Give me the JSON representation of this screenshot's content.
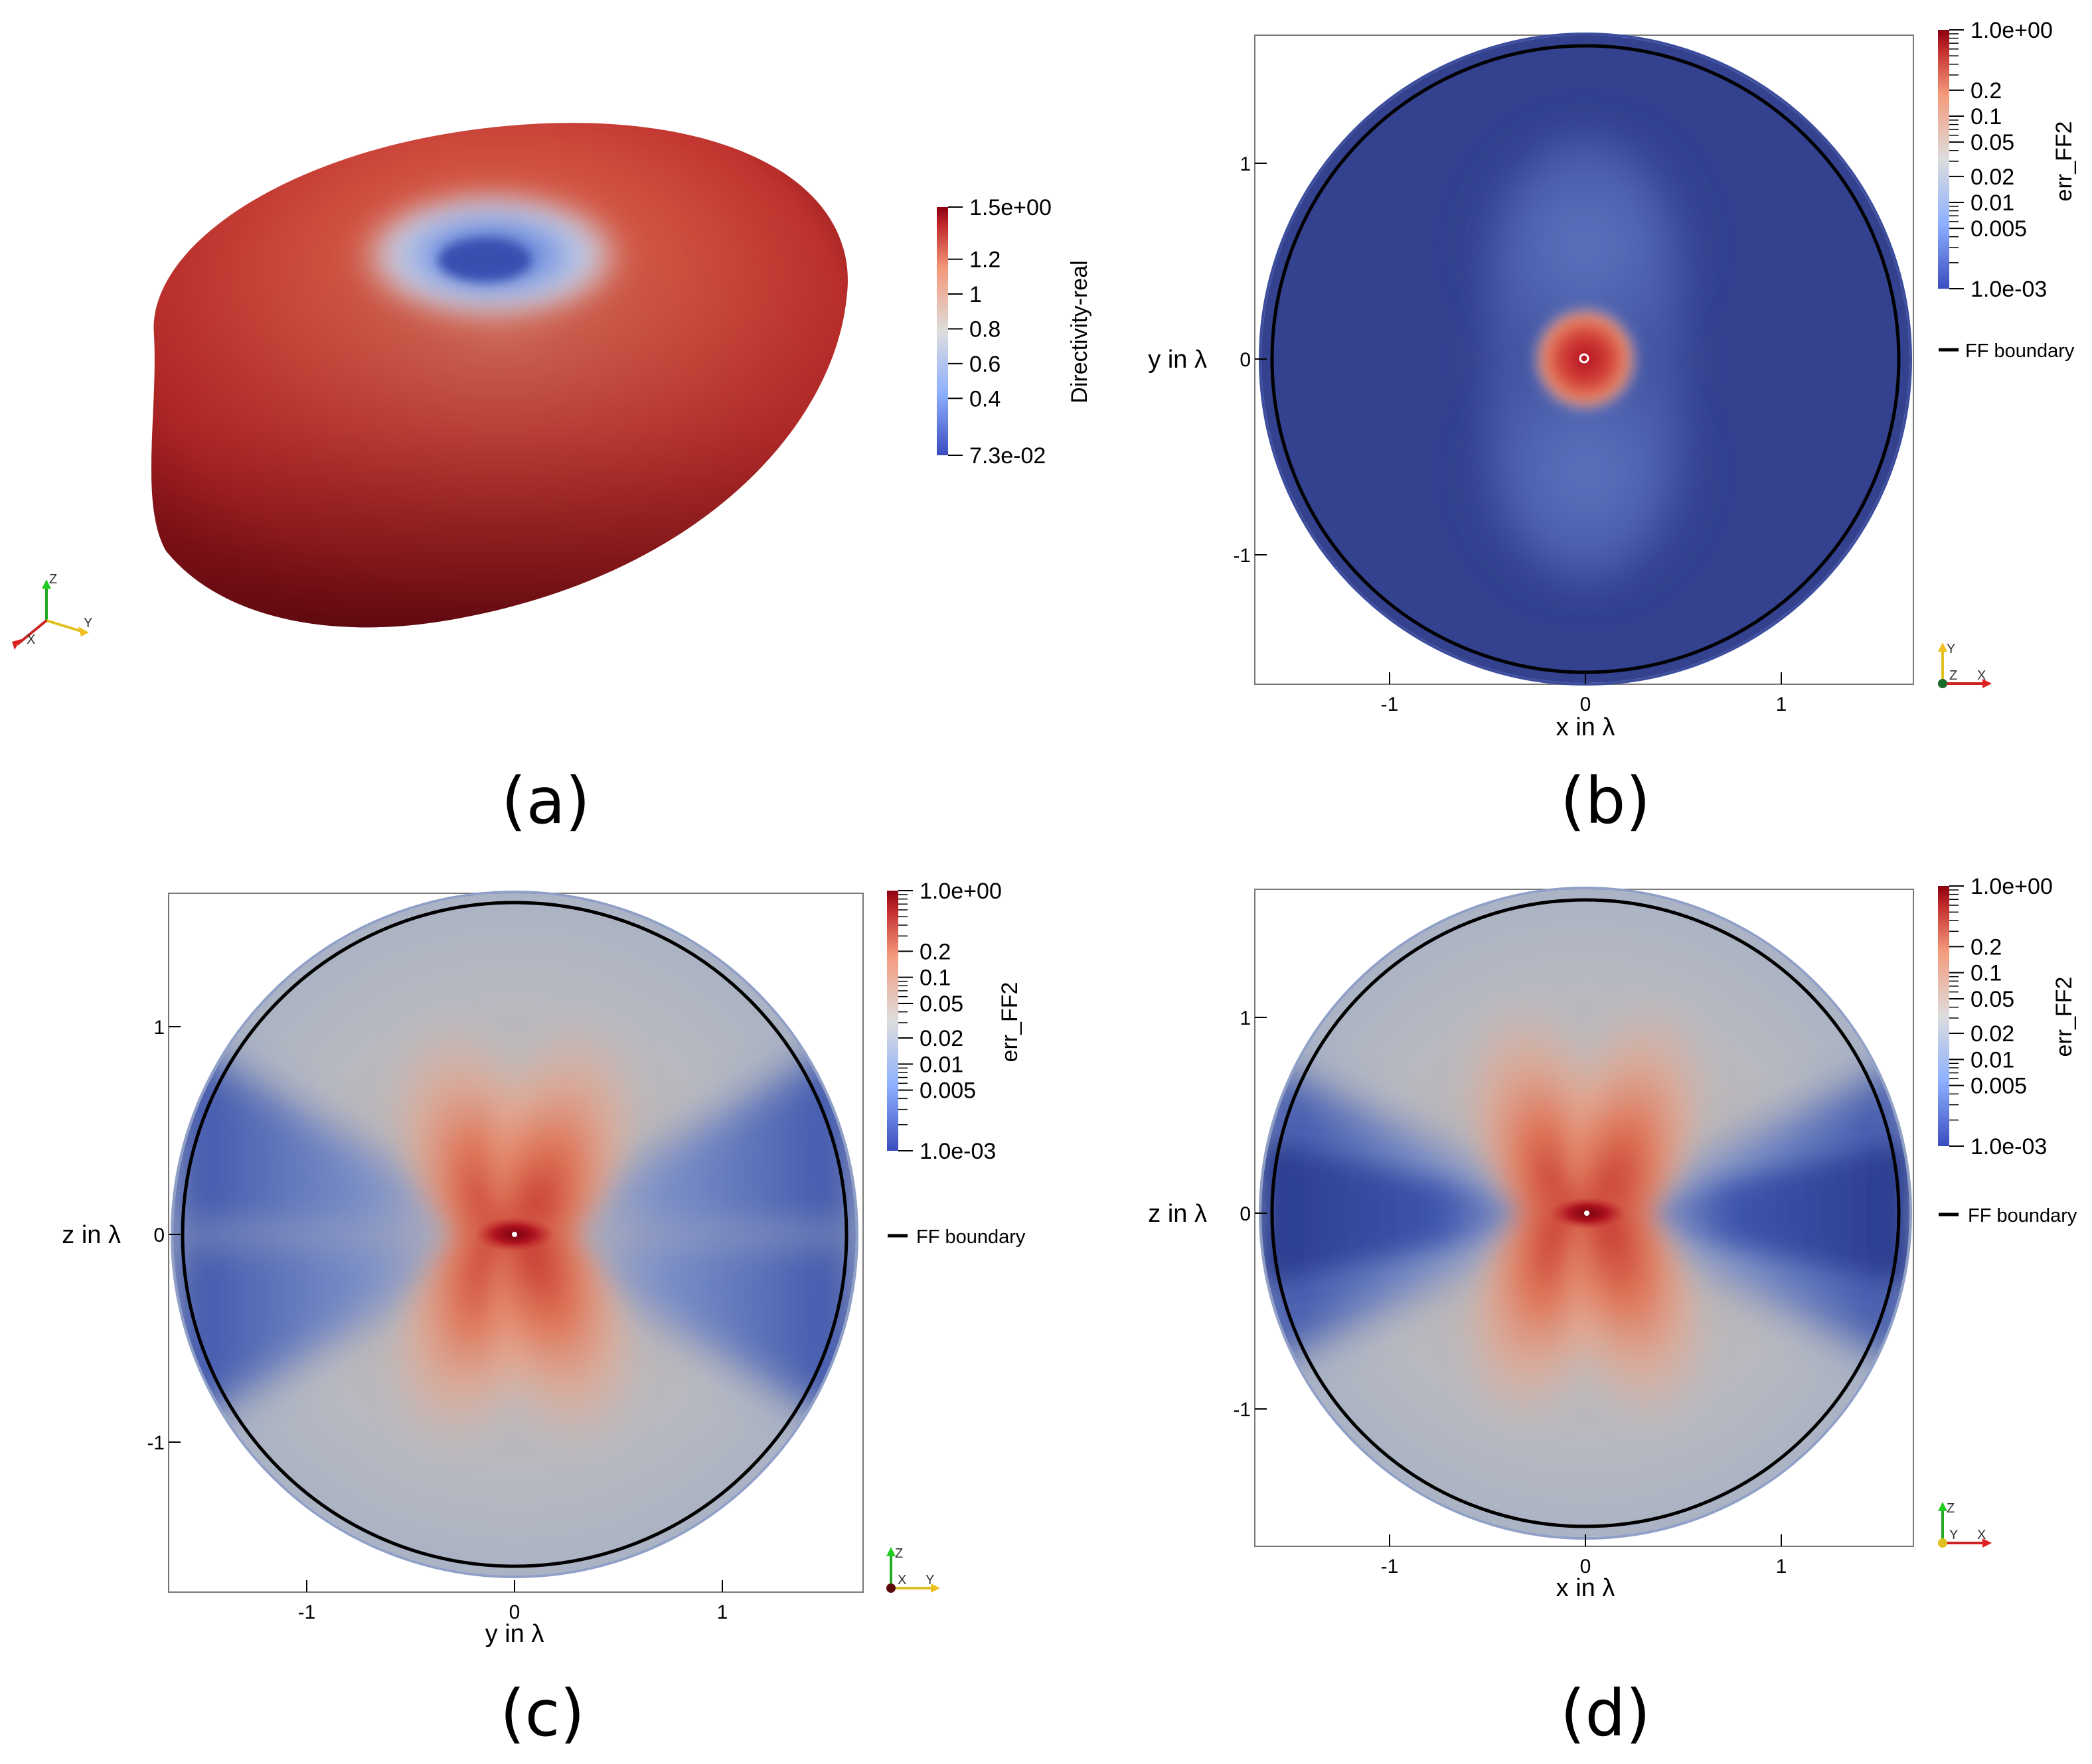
{
  "panels": {
    "a": {
      "label": "(a)"
    },
    "b": {
      "label": "(b)"
    },
    "c": {
      "label": "(c)"
    },
    "d": {
      "label": "(d)"
    }
  },
  "chart_data": [
    {
      "panel": "a",
      "type": "heatmap",
      "description_free": true,
      "surface": "3D toroidal directivity pattern",
      "colorbar": {
        "title": "Directivity-real",
        "scale": "linear",
        "range": [
          0.073,
          1.5
        ],
        "tick_labels": [
          "1.5e+00",
          "1.2",
          "1",
          "0.8",
          "0.6",
          "0.4",
          "7.3e-02"
        ],
        "tick_values": [
          1.5,
          1.2,
          1.0,
          0.8,
          0.6,
          0.4,
          0.073
        ]
      },
      "orientation_axes": [
        "Z",
        "X",
        "Y"
      ],
      "colors": {
        "low": "#3b4cc0",
        "mid": "#dddddd",
        "high": "#b40426",
        "darkest": "#67000d"
      }
    },
    {
      "panel": "b",
      "type": "heatmap",
      "xlabel": "x in λ",
      "ylabel": "y in λ",
      "xlim": [
        -1.65,
        1.65
      ],
      "ylim": [
        -1.65,
        1.65
      ],
      "x_ticks": [
        {
          "label": "-1",
          "value": -1
        },
        {
          "label": "0",
          "value": 0
        },
        {
          "label": "1",
          "value": 1
        }
      ],
      "y_ticks": [
        {
          "label": "1",
          "value": 1
        },
        {
          "label": "0",
          "value": 0
        },
        {
          "label": "-1",
          "value": -1
        }
      ],
      "colorbar": {
        "title": "err_FF2",
        "scale": "log",
        "range": [
          0.001,
          1.0
        ],
        "tick_labels": [
          "1.0e+00",
          "0.2",
          "0.1",
          "0.05",
          "0.02",
          "0.01",
          "0.005",
          "1.0e-03"
        ],
        "tick_values": [
          1.0,
          0.2,
          0.1,
          0.05,
          0.02,
          0.01,
          0.005,
          0.001
        ]
      },
      "legend": {
        "entries": [
          "FF boundary"
        ],
        "placement": "right"
      },
      "orientation_axes": [
        "Y",
        "Z",
        "X"
      ],
      "ff_boundary_radius": 1.6
    },
    {
      "panel": "c",
      "type": "heatmap",
      "xlabel": "y in λ",
      "ylabel": "z in λ",
      "xlim": [
        -1.65,
        1.65
      ],
      "ylim": [
        -1.65,
        1.65
      ],
      "x_ticks": [
        {
          "label": "-1",
          "value": -1
        },
        {
          "label": "0",
          "value": 0
        },
        {
          "label": "1",
          "value": 1
        }
      ],
      "y_ticks": [
        {
          "label": "1",
          "value": 1
        },
        {
          "label": "0",
          "value": 0
        },
        {
          "label": "-1",
          "value": -1
        }
      ],
      "colorbar": {
        "title": "err_FF2",
        "scale": "log",
        "range": [
          0.001,
          1.0
        ],
        "tick_labels": [
          "1.0e+00",
          "0.2",
          "0.1",
          "0.05",
          "0.02",
          "0.01",
          "0.005",
          "1.0e-03"
        ],
        "tick_values": [
          1.0,
          0.2,
          0.1,
          0.05,
          0.02,
          0.01,
          0.005,
          0.001
        ]
      },
      "legend": {
        "entries": [
          "FF boundary"
        ],
        "placement": "right"
      },
      "orientation_axes": [
        "Z",
        "X",
        "Y"
      ],
      "ff_boundary_radius": 1.6
    },
    {
      "panel": "d",
      "type": "heatmap",
      "xlabel": "x in λ",
      "ylabel": "z in λ",
      "xlim": [
        -1.65,
        1.65
      ],
      "ylim": [
        -1.65,
        1.65
      ],
      "x_ticks": [
        {
          "label": "-1",
          "value": -1
        },
        {
          "label": "0",
          "value": 0
        },
        {
          "label": "1",
          "value": 1
        }
      ],
      "y_ticks": [
        {
          "label": "1",
          "value": 1
        },
        {
          "label": "0",
          "value": 0
        },
        {
          "label": "-1",
          "value": -1
        }
      ],
      "colorbar": {
        "title": "err_FF2",
        "scale": "log",
        "range": [
          0.001,
          1.0
        ],
        "tick_labels": [
          "1.0e+00",
          "0.2",
          "0.1",
          "0.05",
          "0.02",
          "0.01",
          "0.005",
          "1.0e-03"
        ],
        "tick_values": [
          1.0,
          0.2,
          0.1,
          0.05,
          0.02,
          0.01,
          0.005,
          0.001
        ]
      },
      "legend": {
        "entries": [
          "FF boundary"
        ],
        "placement": "right"
      },
      "orientation_axes": [
        "Z",
        "Y",
        "X"
      ],
      "ff_boundary_radius": 1.6
    }
  ]
}
